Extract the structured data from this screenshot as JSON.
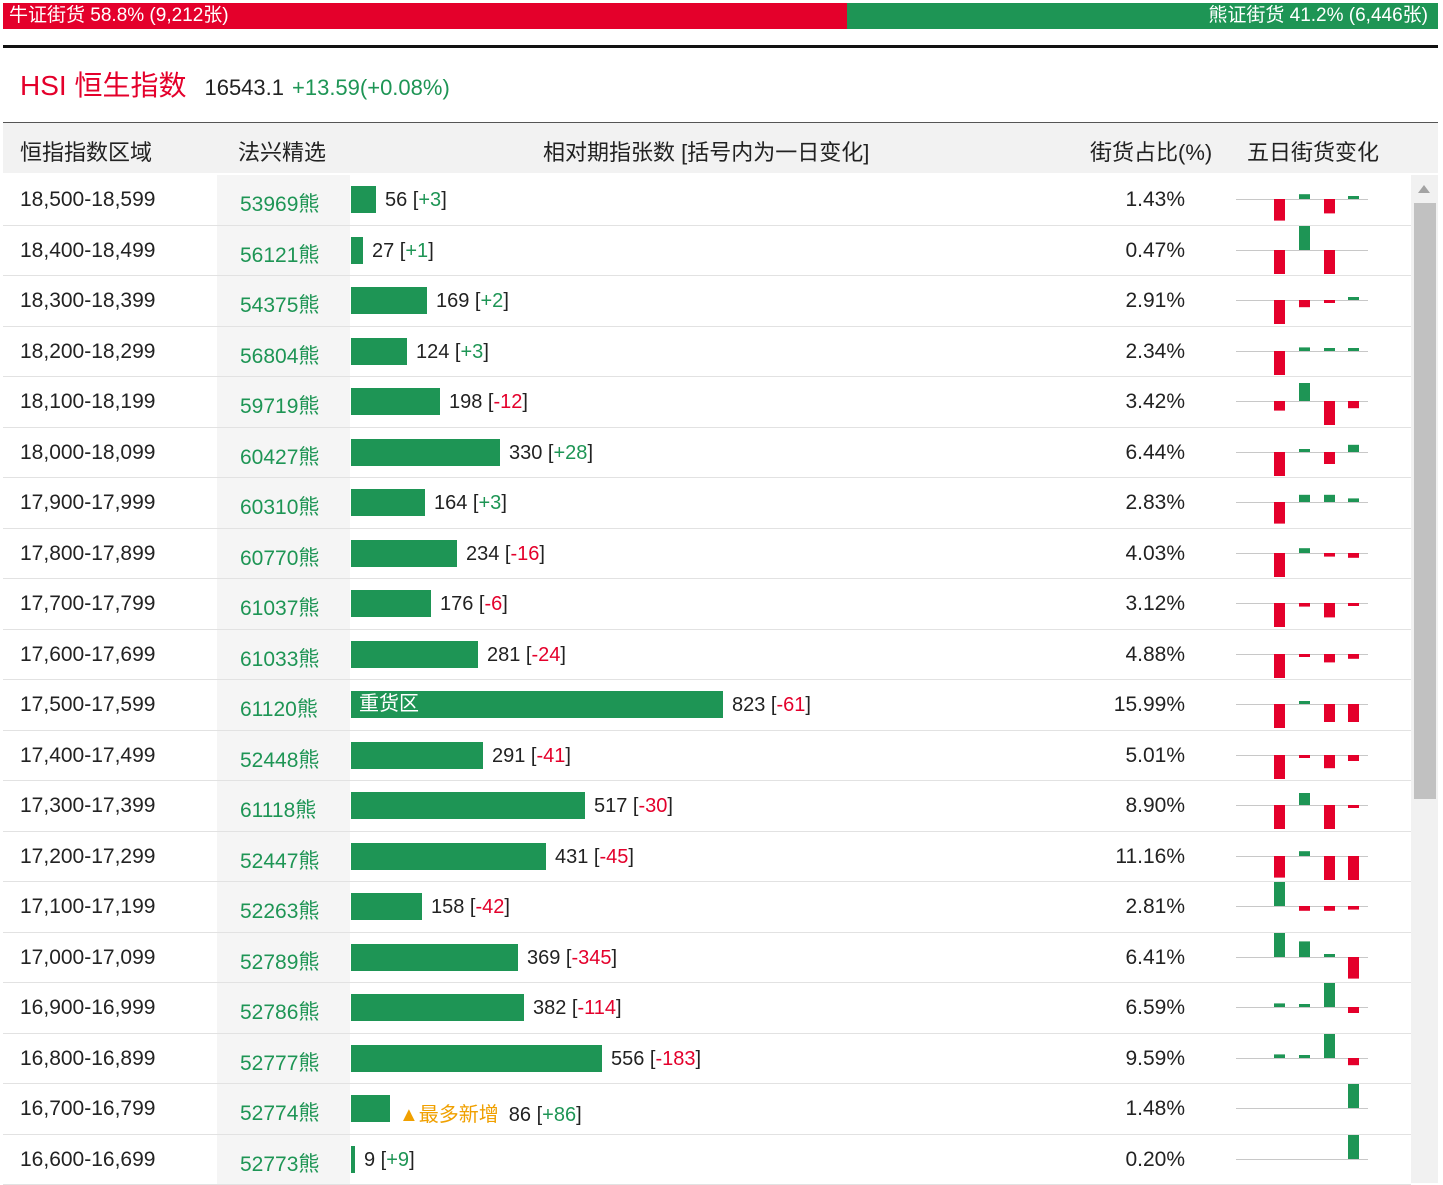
{
  "ratio": {
    "bull_label": "牛证街货 58.8% (9,212张)",
    "bull_fraction": 0.588,
    "bear_label": "熊证街货 41.2% (6,446张)",
    "bear_fraction": 0.412,
    "bull_color": "#e4002b",
    "bear_color": "#1e9555"
  },
  "index": {
    "name": "HSI 恒生指数",
    "price": "16543.1",
    "change": "+13.59(+0.08%)"
  },
  "headers": {
    "range": "恒指指数区域",
    "pick": "法兴精选",
    "count": "相对期指张数 [括号内为一日变化]",
    "share": "街货占比(%)",
    "five_day": "五日街货变化"
  },
  "colors": {
    "up": "#1e9555",
    "down": "#e4002b",
    "highlight": "#f0a000"
  },
  "rows": [
    {
      "range": "18,500-18,599",
      "code": "53969熊",
      "count": "56",
      "change": "+3",
      "share": "1.43%",
      "count_value": 56,
      "spark": [
        -0.9,
        0.2,
        -0.6,
        0.1
      ]
    },
    {
      "range": "18,400-18,499",
      "code": "56121熊",
      "count": "27",
      "change": "+1",
      "share": "0.47%",
      "count_value": 27,
      "spark": [
        -1,
        1,
        -1,
        0
      ]
    },
    {
      "range": "18,300-18,399",
      "code": "54375熊",
      "count": "169",
      "change": "+2",
      "share": "2.91%",
      "count_value": 169,
      "spark": [
        -1,
        -0.3,
        -0.05,
        0.1
      ]
    },
    {
      "range": "18,200-18,299",
      "code": "56804熊",
      "count": "124",
      "change": "+3",
      "share": "2.34%",
      "count_value": 124,
      "spark": [
        -1,
        0.15,
        0.05,
        0.05
      ]
    },
    {
      "range": "18,100-18,199",
      "code": "59719熊",
      "count": "198",
      "change": "-12",
      "share": "3.42%",
      "count_value": 198,
      "spark": [
        -0.4,
        0.75,
        -1,
        -0.3
      ]
    },
    {
      "range": "18,000-18,099",
      "code": "60427熊",
      "count": "330",
      "change": "+28",
      "share": "6.44%",
      "count_value": 330,
      "spark": [
        -1,
        0.05,
        -0.5,
        0.3
      ]
    },
    {
      "range": "17,900-17,999",
      "code": "60310熊",
      "count": "164",
      "change": "+3",
      "share": "2.83%",
      "count_value": 164,
      "spark": [
        -0.9,
        0.3,
        0.3,
        0.15
      ]
    },
    {
      "range": "17,800-17,899",
      "code": "60770熊",
      "count": "234",
      "change": "-16",
      "share": "4.03%",
      "count_value": 234,
      "spark": [
        -1,
        0.2,
        -0.15,
        -0.2
      ]
    },
    {
      "range": "17,700-17,799",
      "code": "61037熊",
      "count": "176",
      "change": "-6",
      "share": "3.12%",
      "count_value": 176,
      "spark": [
        -1,
        -0.15,
        -0.6,
        -0.1
      ]
    },
    {
      "range": "17,600-17,699",
      "code": "61033熊",
      "count": "281",
      "change": "-24",
      "share": "4.88%",
      "count_value": 281,
      "spark": [
        -1,
        -0.1,
        -0.35,
        -0.2
      ]
    },
    {
      "range": "17,500-17,599",
      "code": "61120熊",
      "count": "823",
      "change": "-61",
      "share": "15.99%",
      "count_value": 823,
      "bar_label": "重货区",
      "spark": [
        -1,
        0.1,
        -0.75,
        -0.75
      ]
    },
    {
      "range": "17,400-17,499",
      "code": "52448熊",
      "count": "291",
      "change": "-41",
      "share": "5.01%",
      "count_value": 291,
      "spark": [
        -1,
        -0.1,
        -0.55,
        -0.25
      ]
    },
    {
      "range": "17,300-17,399",
      "code": "61118熊",
      "count": "517",
      "change": "-30",
      "share": "8.90%",
      "count_value": 517,
      "spark": [
        -1,
        0.5,
        -1,
        -0.1
      ]
    },
    {
      "range": "17,200-17,299",
      "code": "52447熊",
      "count": "431",
      "change": "-45",
      "share": "11.16%",
      "count_value": 431,
      "spark": [
        -0.9,
        0.2,
        -1,
        -1
      ]
    },
    {
      "range": "17,100-17,199",
      "code": "52263熊",
      "count": "158",
      "change": "-42",
      "share": "2.81%",
      "count_value": 158,
      "spark": [
        1,
        -0.2,
        -0.2,
        -0.15
      ]
    },
    {
      "range": "17,000-17,099",
      "code": "52789熊",
      "count": "369",
      "change": "-345",
      "share": "6.41%",
      "count_value": 369,
      "spark": [
        1,
        0.65,
        0.1,
        -0.9
      ]
    },
    {
      "range": "16,900-16,999",
      "code": "52786熊",
      "count": "382",
      "change": "-114",
      "share": "6.59%",
      "count_value": 382,
      "spark": [
        0.15,
        0.05,
        1,
        -0.25
      ]
    },
    {
      "range": "16,800-16,899",
      "code": "52777熊",
      "count": "556",
      "change": "-183",
      "share": "9.59%",
      "count_value": 556,
      "spark": [
        0.15,
        0.05,
        1,
        -0.3
      ]
    },
    {
      "range": "16,700-16,799",
      "code": "52774熊",
      "count": "86",
      "change": "+86",
      "share": "1.48%",
      "count_value": 86,
      "tag": "▲最多新增",
      "spark": [
        0,
        0,
        0,
        1
      ]
    },
    {
      "range": "16,600-16,699",
      "code": "52773熊",
      "count": "9",
      "change": "+9",
      "share": "0.20%",
      "count_value": 9,
      "spark": [
        0,
        0,
        0,
        1
      ]
    }
  ]
}
